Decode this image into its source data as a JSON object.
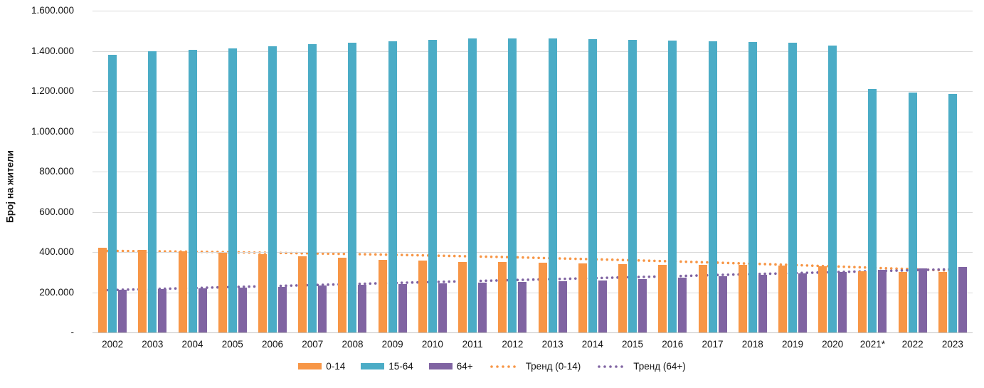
{
  "chart_data": {
    "type": "bar",
    "title": "",
    "ylabel": "Број на жители",
    "xlabel": "",
    "ylim": [
      0,
      1600000
    ],
    "ytick_step": 200000,
    "ytick_labels_bottom_to_top": [
      "-",
      "200.000",
      "400.000",
      "600.000",
      "800.000",
      "1.000.000",
      "1.200.000",
      "1.400.000",
      "1.600.000"
    ],
    "grid": true,
    "legend_position": "bottom",
    "categories": [
      "2002",
      "2003",
      "2004",
      "2005",
      "2006",
      "2007",
      "2008",
      "2009",
      "2010",
      "2011",
      "2012",
      "2013",
      "2014",
      "2015",
      "2016",
      "2017",
      "2018",
      "2019",
      "2020",
      "2021*",
      "2022",
      "2023"
    ],
    "series": [
      {
        "name": "0-14",
        "color": "#F79646",
        "values": [
          420000,
          411000,
          404000,
          397000,
          390000,
          379000,
          370000,
          362000,
          356000,
          352000,
          350000,
          347000,
          344000,
          341000,
          338000,
          336000,
          335000,
          333000,
          330000,
          304000,
          302000,
          300000
        ]
      },
      {
        "name": "15-64",
        "color": "#4BACC6",
        "values": [
          1382000,
          1398000,
          1406000,
          1414000,
          1424000,
          1433000,
          1441000,
          1449000,
          1456000,
          1461000,
          1462000,
          1461000,
          1459000,
          1456000,
          1453000,
          1449000,
          1444000,
          1439000,
          1427000,
          1211000,
          1193000,
          1187000
        ]
      },
      {
        "name": "64+",
        "color": "#8064A2",
        "values": [
          212000,
          216000,
          220000,
          224000,
          228000,
          233000,
          237000,
          241000,
          244000,
          247000,
          251000,
          255000,
          260000,
          266000,
          272000,
          279000,
          286000,
          294000,
          302000,
          312000,
          319000,
          327000
        ]
      }
    ],
    "trends": [
      {
        "name": "Тренд (0-14)",
        "color": "#F79646",
        "values": [
          406000,
          404000,
          402000,
          399500,
          396500,
          393500,
          390500,
          386500,
          382500,
          378500,
          374000,
          369000,
          364000,
          358500,
          353000,
          347000,
          341000,
          334000,
          327500,
          320000,
          312500,
          305000
        ]
      },
      {
        "name": "Тренд (64+)",
        "color": "#8064A2",
        "values": [
          210000,
          215000,
          220000,
          225000,
          230000,
          235000,
          240500,
          245500,
          250500,
          255500,
          260500,
          265500,
          270500,
          275500,
          280500,
          286000,
          291000,
          296000,
          301000,
          306000,
          311000,
          316000
        ]
      }
    ]
  }
}
